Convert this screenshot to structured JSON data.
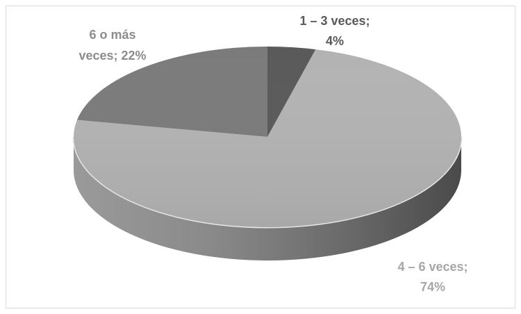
{
  "chart_data": {
    "type": "pie",
    "style": "3d",
    "title": "",
    "legend": "none",
    "slices": [
      {
        "label": "1 – 3 veces",
        "value": 4,
        "display": "4%",
        "color": "#5a5a5a",
        "label_color": "#595959"
      },
      {
        "label": "4 – 6 veces",
        "value": 74,
        "display": "74%",
        "color": "#b3b3b3",
        "label_color": "#a6a6a6"
      },
      {
        "label": "6 o más veces",
        "value": 22,
        "display": "22%",
        "color": "#7b7b7b",
        "label_color": "#8c8c8c"
      }
    ]
  }
}
